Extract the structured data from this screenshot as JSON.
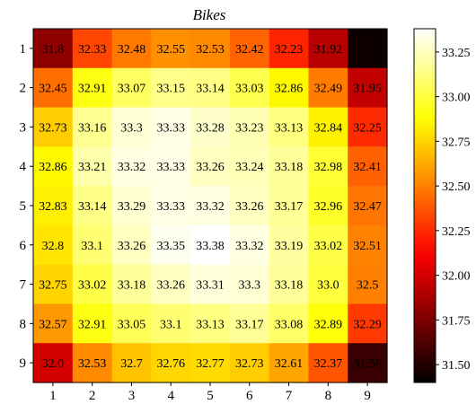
{
  "chart_data": {
    "type": "heatmap",
    "title": "Bikes",
    "xlabel": "",
    "ylabel": "",
    "x_ticks": [
      "1",
      "2",
      "3",
      "4",
      "5",
      "6",
      "7",
      "8",
      "9"
    ],
    "y_ticks": [
      "1",
      "2",
      "3",
      "4",
      "5",
      "6",
      "7",
      "8",
      "9"
    ],
    "values": [
      [
        31.8,
        32.33,
        32.48,
        32.55,
        32.53,
        32.42,
        32.23,
        31.92,
        31.44
      ],
      [
        32.45,
        32.91,
        33.07,
        33.15,
        33.14,
        33.03,
        32.86,
        32.49,
        31.95
      ],
      [
        32.73,
        33.16,
        33.3,
        33.33,
        33.28,
        33.23,
        33.13,
        32.84,
        32.25
      ],
      [
        32.86,
        33.21,
        33.32,
        33.33,
        33.26,
        33.24,
        33.18,
        32.98,
        32.41
      ],
      [
        32.83,
        33.14,
        33.29,
        33.33,
        33.32,
        33.26,
        33.17,
        32.96,
        32.47
      ],
      [
        32.8,
        33.1,
        33.26,
        33.35,
        33.38,
        33.32,
        33.19,
        33.02,
        32.51
      ],
      [
        32.75,
        33.02,
        33.18,
        33.26,
        33.31,
        33.3,
        33.18,
        33.0,
        32.5
      ],
      [
        32.57,
        32.91,
        33.05,
        33.1,
        33.13,
        33.17,
        33.08,
        32.89,
        32.29
      ],
      [
        32.0,
        32.53,
        32.7,
        32.76,
        32.77,
        32.73,
        32.61,
        32.37,
        31.56
      ]
    ],
    "cell_labels": [
      [
        "31.8",
        "32.33",
        "32.48",
        "32.55",
        "32.53",
        "32.42",
        "32.23",
        "31.92",
        ""
      ],
      [
        "32.45",
        "32.91",
        "33.07",
        "33.15",
        "33.14",
        "33.03",
        "32.86",
        "32.49",
        "31.95"
      ],
      [
        "32.73",
        "33.16",
        "33.3",
        "33.33",
        "33.28",
        "33.23",
        "33.13",
        "32.84",
        "32.25"
      ],
      [
        "32.86",
        "33.21",
        "33.32",
        "33.33",
        "33.26",
        "33.24",
        "33.18",
        "32.98",
        "32.41"
      ],
      [
        "32.83",
        "33.14",
        "33.29",
        "33.33",
        "33.32",
        "33.26",
        "33.17",
        "32.96",
        "32.47"
      ],
      [
        "32.8",
        "33.1",
        "33.26",
        "33.35",
        "33.38",
        "33.32",
        "33.19",
        "33.02",
        "32.51"
      ],
      [
        "32.75",
        "33.02",
        "33.18",
        "33.26",
        "33.31",
        "33.3",
        "33.18",
        "33.0",
        "32.5"
      ],
      [
        "32.57",
        "32.91",
        "33.05",
        "33.1",
        "33.13",
        "33.17",
        "33.08",
        "32.89",
        "32.29"
      ],
      [
        "32.0",
        "32.53",
        "32.7",
        "32.76",
        "32.77",
        "32.73",
        "32.61",
        "32.37",
        "31.56"
      ]
    ],
    "colormap": "hot",
    "vmin": 31.4,
    "vmax": 33.38,
    "colorbar_ticks": [
      31.5,
      31.75,
      32.0,
      32.25,
      32.5,
      32.75,
      33.0,
      33.25
    ],
    "colorbar_tick_labels": [
      "31.50",
      "31.75",
      "32.00",
      "32.25",
      "32.50",
      "32.75",
      "33.00",
      "33.25"
    ],
    "grid": false
  }
}
